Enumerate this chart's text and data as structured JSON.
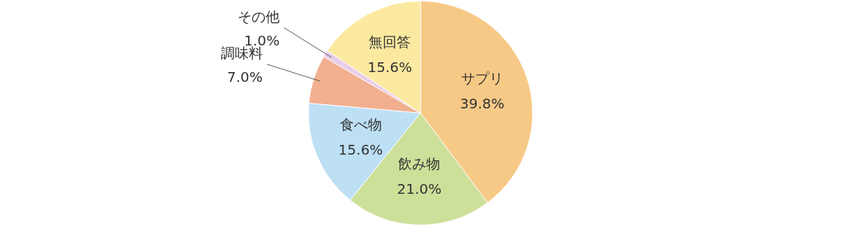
{
  "chart_data": {
    "type": "pie",
    "categories": [
      "サプリ",
      "飲み物",
      "食べ物",
      "調味料",
      "その他",
      "無回答"
    ],
    "values": [
      39.8,
      21.0,
      15.6,
      7.0,
      1.0,
      15.6
    ],
    "value_labels": [
      "39.8%",
      "21.0%",
      "15.6%",
      "7.0%",
      "1.0%",
      "15.6%"
    ],
    "colors": [
      "#f7c986",
      "#cde09a",
      "#bde0f5",
      "#f2b090",
      "#e8cde8",
      "#fbe9a0"
    ],
    "legend": false
  }
}
